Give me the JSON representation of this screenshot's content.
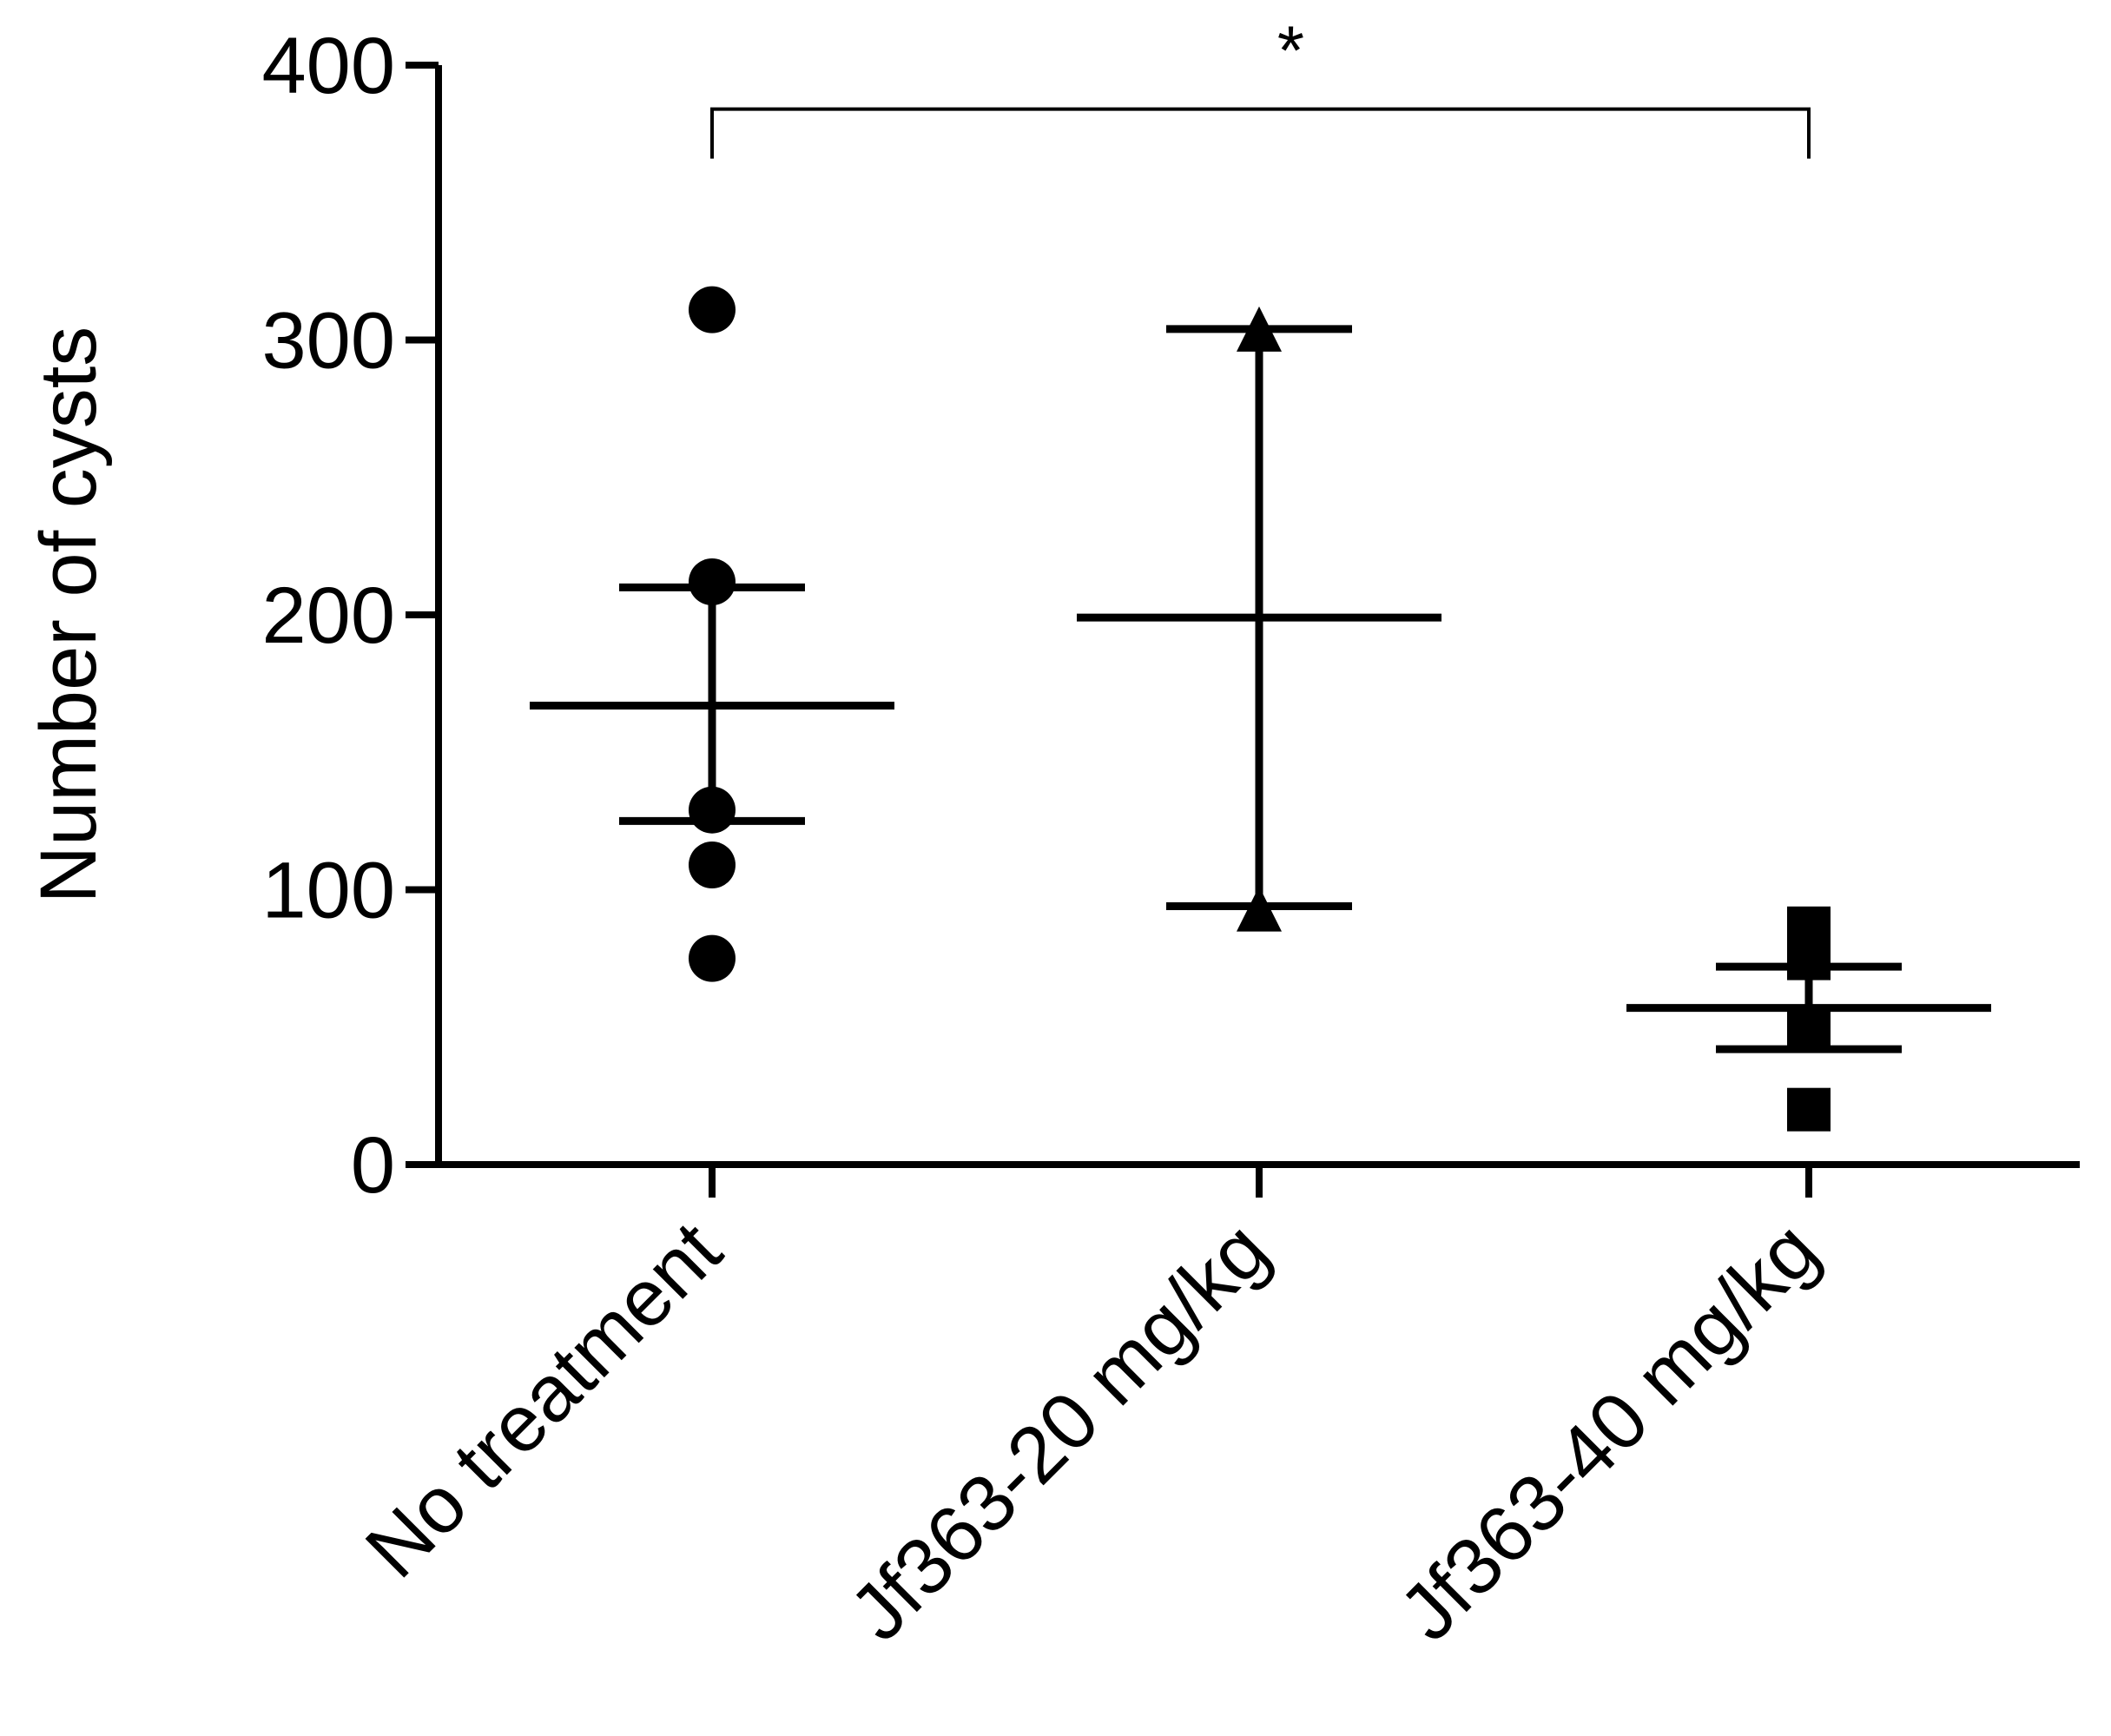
{
  "chart_data": {
    "type": "scatter",
    "title": "",
    "xlabel": "",
    "ylabel": "Number of cysts",
    "ylim": [
      0,
      400
    ],
    "yticks": [
      0,
      100,
      200,
      300,
      400
    ],
    "grid": false,
    "categories": [
      "No treatment",
      "Jf363-20 mg/kg",
      "Jf363-40 mg/kg"
    ],
    "series": [
      {
        "category": "No treatment",
        "marker": "circle",
        "points": [
          311,
          212,
          129,
          109,
          75
        ],
        "mean": 167,
        "error_upper": 210,
        "error_lower": 125
      },
      {
        "category": "Jf363-20 mg/kg",
        "marker": "triangle",
        "points": [
          304,
          93
        ],
        "mean": 199,
        "error_upper": 304,
        "error_lower": 94
      },
      {
        "category": "Jf363-40 mg/kg",
        "marker": "square",
        "points": [
          86,
          75,
          50,
          20
        ],
        "mean": 57,
        "error_upper": 72,
        "error_lower": 42
      }
    ],
    "annotations": [
      {
        "text": "*",
        "from": "No treatment",
        "to": "Jf363-40 mg/kg",
        "y_bracket": 384,
        "y_tick_bottom": 366
      }
    ]
  }
}
